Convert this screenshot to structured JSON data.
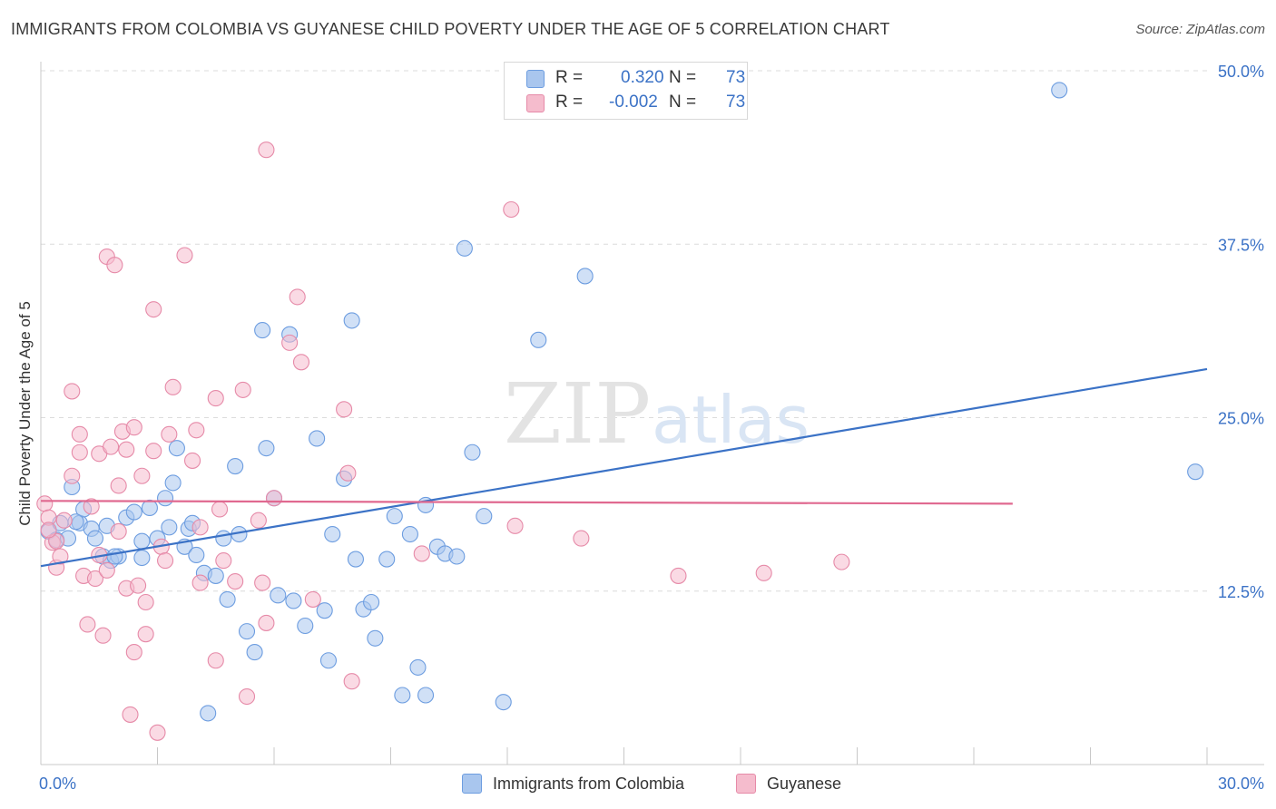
{
  "header": {
    "title": "IMMIGRANTS FROM COLOMBIA VS GUYANESE CHILD POVERTY UNDER THE AGE OF 5 CORRELATION CHART",
    "source": "Source: ZipAtlas.com"
  },
  "watermark": {
    "part1": "ZIP",
    "part2": "atlas"
  },
  "stats": {
    "r_label": "R =",
    "n_label": "N =",
    "rows": [
      {
        "r": "0.320",
        "n": "73",
        "color": "#a9c6ee"
      },
      {
        "r": "-0.002",
        "n": "73",
        "color": "#f5bccd"
      }
    ]
  },
  "legend": {
    "items": [
      {
        "label": "Immigrants from Colombia",
        "color": "#a9c6ee"
      },
      {
        "label": "Guyanese",
        "color": "#f5bccd"
      }
    ]
  },
  "chart_data": {
    "type": "scatter",
    "title": "IMMIGRANTS FROM COLOMBIA VS GUYANESE CHILD POVERTY UNDER THE AGE OF 5 CORRELATION CHART",
    "xlabel": "",
    "ylabel": "Child Poverty Under the Age of 5",
    "xlim": [
      0,
      30
    ],
    "ylim": [
      0,
      50
    ],
    "x_tick_labels": [
      "0.0%",
      "30.0%"
    ],
    "y_ticks": [
      12.5,
      25.0,
      37.5,
      50.0
    ],
    "y_tick_labels": [
      "12.5%",
      "25.0%",
      "37.5%",
      "50.0%"
    ],
    "grid": true,
    "legend_position": "bottom",
    "series": [
      {
        "name": "Immigrants from Colombia",
        "color": "#a9c6ee",
        "stroke": "#6d9de0",
        "trend": {
          "x": [
            0,
            30
          ],
          "y": [
            14.3,
            28.5
          ],
          "color": "#3b72c6"
        },
        "points": [
          [
            0.2,
            16.8
          ],
          [
            0.4,
            16.2
          ],
          [
            0.5,
            17.4
          ],
          [
            0.7,
            16.3
          ],
          [
            0.8,
            20.0
          ],
          [
            1.0,
            17.4
          ],
          [
            1.1,
            18.4
          ],
          [
            1.3,
            17.0
          ],
          [
            1.4,
            16.3
          ],
          [
            1.6,
            15.0
          ],
          [
            1.7,
            17.2
          ],
          [
            1.8,
            14.7
          ],
          [
            2.0,
            15.0
          ],
          [
            2.2,
            17.8
          ],
          [
            2.4,
            18.2
          ],
          [
            2.6,
            16.1
          ],
          [
            2.8,
            18.5
          ],
          [
            3.0,
            16.3
          ],
          [
            3.2,
            19.2
          ],
          [
            3.3,
            17.1
          ],
          [
            3.4,
            20.3
          ],
          [
            3.5,
            22.8
          ],
          [
            3.7,
            15.7
          ],
          [
            3.8,
            17.0
          ],
          [
            3.9,
            17.4
          ],
          [
            4.0,
            15.1
          ],
          [
            4.2,
            13.8
          ],
          [
            4.5,
            13.6
          ],
          [
            4.7,
            16.3
          ],
          [
            4.8,
            11.9
          ],
          [
            5.0,
            21.5
          ],
          [
            5.1,
            16.6
          ],
          [
            5.3,
            9.6
          ],
          [
            5.5,
            8.1
          ],
          [
            5.7,
            31.3
          ],
          [
            5.8,
            22.8
          ],
          [
            6.0,
            19.2
          ],
          [
            6.1,
            12.2
          ],
          [
            6.4,
            31.0
          ],
          [
            6.5,
            11.8
          ],
          [
            7.1,
            23.5
          ],
          [
            7.3,
            11.1
          ],
          [
            7.5,
            16.6
          ],
          [
            7.8,
            20.6
          ],
          [
            8.0,
            32.0
          ],
          [
            8.1,
            14.8
          ],
          [
            8.3,
            11.2
          ],
          [
            8.5,
            11.7
          ],
          [
            8.6,
            9.1
          ],
          [
            8.9,
            14.8
          ],
          [
            9.1,
            17.9
          ],
          [
            9.3,
            5.0
          ],
          [
            9.5,
            16.6
          ],
          [
            9.7,
            7.0
          ],
          [
            9.9,
            18.7
          ],
          [
            10.2,
            15.7
          ],
          [
            10.4,
            15.2
          ],
          [
            10.7,
            15.0
          ],
          [
            10.9,
            37.2
          ],
          [
            11.1,
            22.5
          ],
          [
            11.4,
            17.9
          ],
          [
            11.9,
            4.5
          ],
          [
            12.8,
            30.6
          ],
          [
            14.0,
            35.2
          ],
          [
            26.2,
            48.6
          ],
          [
            29.7,
            21.1
          ],
          [
            6.8,
            10.0
          ],
          [
            7.4,
            7.5
          ],
          [
            9.9,
            5.0
          ],
          [
            4.3,
            3.7
          ],
          [
            2.6,
            14.9
          ],
          [
            1.9,
            15.0
          ],
          [
            0.9,
            17.5
          ]
        ]
      },
      {
        "name": "Guyanese",
        "color": "#f5bccd",
        "stroke": "#e68aa8",
        "trend": {
          "x": [
            0,
            25
          ],
          "y": [
            19.0,
            18.8
          ],
          "color": "#e06990"
        },
        "points": [
          [
            0.1,
            18.8
          ],
          [
            0.2,
            17.8
          ],
          [
            0.3,
            16.0
          ],
          [
            0.4,
            14.2
          ],
          [
            0.5,
            15.0
          ],
          [
            0.6,
            17.6
          ],
          [
            0.8,
            26.9
          ],
          [
            0.8,
            20.8
          ],
          [
            1.0,
            22.5
          ],
          [
            1.0,
            23.8
          ],
          [
            1.1,
            13.6
          ],
          [
            1.2,
            10.1
          ],
          [
            1.3,
            18.6
          ],
          [
            1.4,
            13.4
          ],
          [
            1.5,
            22.4
          ],
          [
            1.6,
            9.3
          ],
          [
            1.7,
            14.0
          ],
          [
            1.8,
            22.9
          ],
          [
            1.7,
            36.6
          ],
          [
            1.9,
            36.0
          ],
          [
            2.0,
            20.1
          ],
          [
            2.1,
            24.0
          ],
          [
            2.2,
            22.7
          ],
          [
            2.2,
            12.7
          ],
          [
            2.4,
            8.1
          ],
          [
            2.3,
            3.6
          ],
          [
            2.4,
            24.3
          ],
          [
            2.5,
            12.9
          ],
          [
            2.6,
            20.8
          ],
          [
            2.7,
            11.7
          ],
          [
            2.7,
            9.4
          ],
          [
            2.9,
            22.6
          ],
          [
            2.9,
            32.8
          ],
          [
            3.0,
            2.3
          ],
          [
            3.1,
            15.7
          ],
          [
            3.2,
            14.7
          ],
          [
            3.3,
            23.8
          ],
          [
            3.4,
            27.2
          ],
          [
            3.7,
            36.7
          ],
          [
            3.9,
            21.9
          ],
          [
            4.0,
            24.1
          ],
          [
            4.1,
            17.1
          ],
          [
            4.1,
            13.1
          ],
          [
            4.5,
            26.4
          ],
          [
            4.5,
            7.5
          ],
          [
            4.6,
            18.4
          ],
          [
            4.7,
            14.7
          ],
          [
            5.0,
            13.2
          ],
          [
            5.2,
            27.0
          ],
          [
            5.3,
            4.9
          ],
          [
            5.6,
            17.6
          ],
          [
            5.7,
            13.1
          ],
          [
            5.8,
            10.2
          ],
          [
            5.8,
            44.3
          ],
          [
            6.0,
            19.2
          ],
          [
            6.4,
            30.4
          ],
          [
            6.6,
            33.7
          ],
          [
            6.7,
            29.0
          ],
          [
            7.0,
            11.9
          ],
          [
            7.8,
            25.6
          ],
          [
            7.9,
            21.0
          ],
          [
            8.0,
            6.0
          ],
          [
            9.8,
            15.2
          ],
          [
            12.1,
            40.0
          ],
          [
            12.2,
            17.2
          ],
          [
            13.9,
            16.3
          ],
          [
            16.4,
            13.6
          ],
          [
            18.6,
            13.8
          ],
          [
            20.6,
            14.6
          ],
          [
            1.5,
            15.1
          ],
          [
            2.0,
            16.8
          ],
          [
            0.4,
            16.1
          ],
          [
            0.2,
            16.9
          ]
        ]
      }
    ]
  }
}
